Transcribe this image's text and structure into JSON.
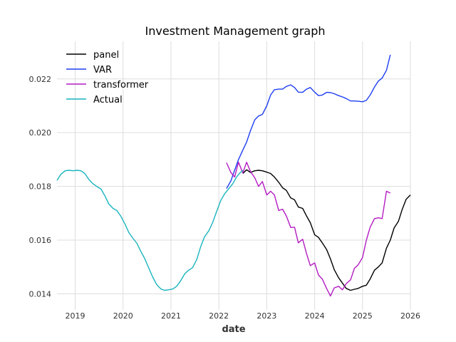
{
  "chart_data": {
    "type": "line",
    "title": "Investment Management graph",
    "xlabel": "date",
    "ylabel": "",
    "xlim": [
      2018.62,
      2026.0
    ],
    "ylim": [
      0.0134,
      0.0234
    ],
    "x_ticks": [
      {
        "value": 2019,
        "label": "2019"
      },
      {
        "value": 2020,
        "label": "2020"
      },
      {
        "value": 2021,
        "label": "2021"
      },
      {
        "value": 2022,
        "label": "2022"
      },
      {
        "value": 2023,
        "label": "2023"
      },
      {
        "value": 2024,
        "label": "2024"
      },
      {
        "value": 2025,
        "label": "2025"
      },
      {
        "value": 2026,
        "label": "2026"
      }
    ],
    "y_ticks": [
      {
        "value": 0.014,
        "label": "0.014"
      },
      {
        "value": 0.016,
        "label": "0.016"
      },
      {
        "value": 0.018,
        "label": "0.018"
      },
      {
        "value": 0.02,
        "label": "0.020"
      },
      {
        "value": 0.022,
        "label": "0.022"
      }
    ],
    "grid": true,
    "legend_position": "top-left",
    "series": [
      {
        "name": "panel",
        "color": "#000000",
        "points": [
          [
            2022.5,
            0.01848
          ],
          [
            2022.58,
            0.01862
          ],
          [
            2022.66,
            0.01852
          ],
          [
            2022.75,
            0.01858
          ],
          [
            2022.83,
            0.0186
          ],
          [
            2022.91,
            0.01858
          ],
          [
            2023.0,
            0.01853
          ],
          [
            2023.08,
            0.01848
          ],
          [
            2023.16,
            0.01835
          ],
          [
            2023.25,
            0.01815
          ],
          [
            2023.33,
            0.01795
          ],
          [
            2023.41,
            0.01785
          ],
          [
            2023.5,
            0.01757
          ],
          [
            2023.58,
            0.0175
          ],
          [
            2023.66,
            0.01723
          ],
          [
            2023.75,
            0.01718
          ],
          [
            2023.83,
            0.0169
          ],
          [
            2023.91,
            0.01665
          ],
          [
            2024.0,
            0.0162
          ],
          [
            2024.08,
            0.0161
          ],
          [
            2024.16,
            0.0159
          ],
          [
            2024.25,
            0.01565
          ],
          [
            2024.33,
            0.0153
          ],
          [
            2024.41,
            0.0149
          ],
          [
            2024.5,
            0.0146
          ],
          [
            2024.58,
            0.0144
          ],
          [
            2024.66,
            0.0142
          ],
          [
            2024.75,
            0.01413
          ],
          [
            2024.83,
            0.01417
          ],
          [
            2024.91,
            0.0142
          ],
          [
            2025.0,
            0.01428
          ],
          [
            2025.08,
            0.01432
          ],
          [
            2025.16,
            0.01455
          ],
          [
            2025.25,
            0.01488
          ],
          [
            2025.33,
            0.015
          ],
          [
            2025.41,
            0.01515
          ],
          [
            2025.5,
            0.0157
          ],
          [
            2025.58,
            0.016
          ],
          [
            2025.66,
            0.01645
          ],
          [
            2025.75,
            0.0167
          ],
          [
            2025.83,
            0.01715
          ],
          [
            2025.91,
            0.01752
          ],
          [
            2026.0,
            0.01768
          ]
        ]
      },
      {
        "name": "VAR",
        "color": "#1f3ff0",
        "points": [
          [
            2022.16,
            0.01792
          ],
          [
            2022.25,
            0.0182
          ],
          [
            2022.33,
            0.0186
          ],
          [
            2022.41,
            0.019
          ],
          [
            2022.5,
            0.01935
          ],
          [
            2022.58,
            0.01965
          ],
          [
            2022.66,
            0.02007
          ],
          [
            2022.75,
            0.02048
          ],
          [
            2022.83,
            0.02062
          ],
          [
            2022.91,
            0.02068
          ],
          [
            2023.0,
            0.021
          ],
          [
            2023.08,
            0.0214
          ],
          [
            2023.16,
            0.0216
          ],
          [
            2023.25,
            0.02162
          ],
          [
            2023.33,
            0.02162
          ],
          [
            2023.41,
            0.02172
          ],
          [
            2023.5,
            0.02178
          ],
          [
            2023.58,
            0.02168
          ],
          [
            2023.66,
            0.02151
          ],
          [
            2023.75,
            0.0215
          ],
          [
            2023.83,
            0.02162
          ],
          [
            2023.91,
            0.02168
          ],
          [
            2024.0,
            0.02151
          ],
          [
            2024.08,
            0.02138
          ],
          [
            2024.16,
            0.0214
          ],
          [
            2024.25,
            0.0215
          ],
          [
            2024.33,
            0.02149
          ],
          [
            2024.41,
            0.02145
          ],
          [
            2024.5,
            0.02138
          ],
          [
            2024.58,
            0.02133
          ],
          [
            2024.66,
            0.02127
          ],
          [
            2024.75,
            0.02118
          ],
          [
            2024.83,
            0.02118
          ],
          [
            2024.91,
            0.02117
          ],
          [
            2025.0,
            0.02115
          ],
          [
            2025.08,
            0.0212
          ],
          [
            2025.16,
            0.0214
          ],
          [
            2025.25,
            0.0217
          ],
          [
            2025.33,
            0.02192
          ],
          [
            2025.41,
            0.02203
          ],
          [
            2025.5,
            0.02232
          ],
          [
            2025.58,
            0.0229
          ]
        ]
      },
      {
        "name": "transformer",
        "color": "#b41bc3",
        "points": [
          [
            2022.16,
            0.01888
          ],
          [
            2022.25,
            0.01852
          ],
          [
            2022.33,
            0.01835
          ],
          [
            2022.41,
            0.0189
          ],
          [
            2022.5,
            0.0185
          ],
          [
            2022.58,
            0.0189
          ],
          [
            2022.66,
            0.01855
          ],
          [
            2022.75,
            0.01832
          ],
          [
            2022.83,
            0.018
          ],
          [
            2022.91,
            0.01818
          ],
          [
            2023.0,
            0.01768
          ],
          [
            2023.08,
            0.01782
          ],
          [
            2023.16,
            0.01768
          ],
          [
            2023.25,
            0.0171
          ],
          [
            2023.33,
            0.01715
          ],
          [
            2023.41,
            0.0169
          ],
          [
            2023.5,
            0.01647
          ],
          [
            2023.58,
            0.01648
          ],
          [
            2023.66,
            0.0159
          ],
          [
            2023.75,
            0.01603
          ],
          [
            2023.83,
            0.0155
          ],
          [
            2023.91,
            0.01505
          ],
          [
            2024.0,
            0.01515
          ],
          [
            2024.08,
            0.0147
          ],
          [
            2024.16,
            0.01455
          ],
          [
            2024.25,
            0.0142
          ],
          [
            2024.33,
            0.01392
          ],
          [
            2024.41,
            0.01422
          ],
          [
            2024.5,
            0.01428
          ],
          [
            2024.58,
            0.01415
          ],
          [
            2024.66,
            0.01438
          ],
          [
            2024.75,
            0.01452
          ],
          [
            2024.83,
            0.01495
          ],
          [
            2024.91,
            0.01508
          ],
          [
            2025.0,
            0.01535
          ],
          [
            2025.08,
            0.016
          ],
          [
            2025.16,
            0.01648
          ],
          [
            2025.25,
            0.0168
          ],
          [
            2025.33,
            0.01683
          ],
          [
            2025.41,
            0.0168
          ],
          [
            2025.5,
            0.01782
          ],
          [
            2025.58,
            0.01775
          ]
        ]
      },
      {
        "name": "Actual",
        "color": "#19b4be",
        "points": [
          [
            2018.62,
            0.01822
          ],
          [
            2018.7,
            0.01845
          ],
          [
            2018.79,
            0.01858
          ],
          [
            2018.87,
            0.0186
          ],
          [
            2018.95,
            0.01858
          ],
          [
            2019.04,
            0.0186
          ],
          [
            2019.12,
            0.01858
          ],
          [
            2019.2,
            0.01848
          ],
          [
            2019.29,
            0.01825
          ],
          [
            2019.37,
            0.0181
          ],
          [
            2019.45,
            0.018
          ],
          [
            2019.54,
            0.0179
          ],
          [
            2019.62,
            0.01765
          ],
          [
            2019.7,
            0.01735
          ],
          [
            2019.79,
            0.01718
          ],
          [
            2019.87,
            0.0171
          ],
          [
            2019.95,
            0.0169
          ],
          [
            2020.04,
            0.0166
          ],
          [
            2020.12,
            0.01628
          ],
          [
            2020.2,
            0.01608
          ],
          [
            2020.29,
            0.01588
          ],
          [
            2020.37,
            0.01558
          ],
          [
            2020.45,
            0.01532
          ],
          [
            2020.54,
            0.01495
          ],
          [
            2020.62,
            0.01462
          ],
          [
            2020.7,
            0.01435
          ],
          [
            2020.79,
            0.01418
          ],
          [
            2020.87,
            0.01413
          ],
          [
            2020.95,
            0.01415
          ],
          [
            2021.04,
            0.01418
          ],
          [
            2021.12,
            0.01428
          ],
          [
            2021.2,
            0.01448
          ],
          [
            2021.29,
            0.01475
          ],
          [
            2021.37,
            0.01488
          ],
          [
            2021.45,
            0.01497
          ],
          [
            2021.54,
            0.01528
          ],
          [
            2021.62,
            0.01575
          ],
          [
            2021.7,
            0.01612
          ],
          [
            2021.79,
            0.01635
          ],
          [
            2021.87,
            0.01665
          ],
          [
            2021.95,
            0.01705
          ],
          [
            2022.04,
            0.01748
          ],
          [
            2022.12,
            0.01772
          ],
          [
            2022.2,
            0.0179
          ],
          [
            2022.29,
            0.0181
          ],
          [
            2022.37,
            0.01835
          ],
          [
            2022.45,
            0.01852
          ],
          [
            2022.5,
            0.0186
          ]
        ]
      }
    ]
  }
}
